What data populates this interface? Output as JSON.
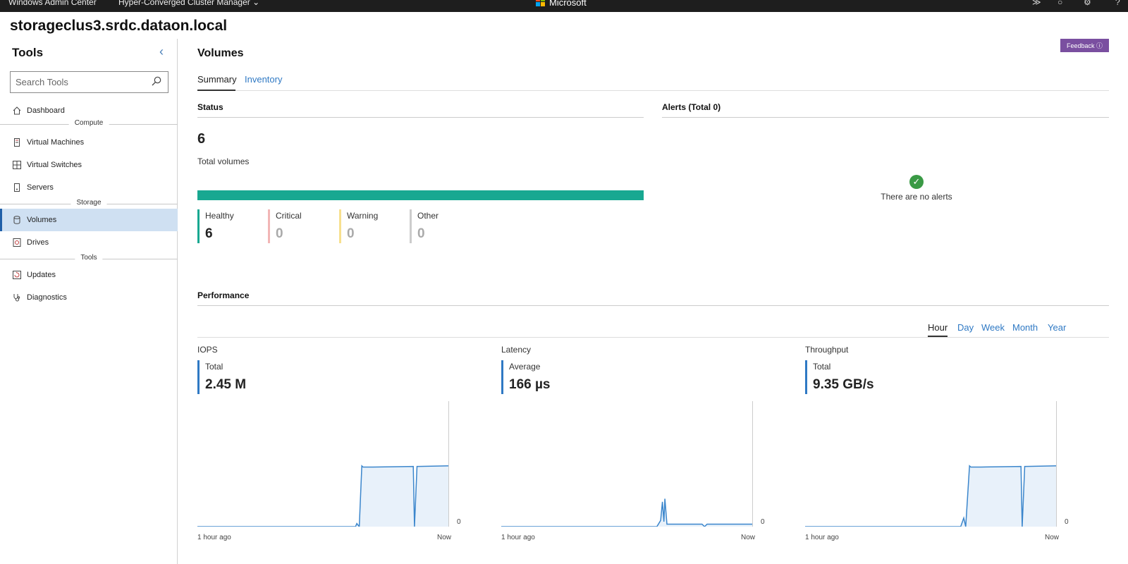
{
  "topbar": {
    "app_title": "Windows Admin Center",
    "manager": "Hyper-Converged Cluster Manager",
    "brand": "Microsoft",
    "icons": [
      "terminal-icon",
      "bell-icon",
      "gear-icon",
      "help-icon"
    ]
  },
  "page": {
    "title": "storageclus3.srdc.dataon.local"
  },
  "sidebar": {
    "title": "Tools",
    "search_placeholder": "Search Tools",
    "items": [
      {
        "label": "Dashboard",
        "icon": "home-icon"
      },
      {
        "group": "Compute"
      },
      {
        "label": "Virtual Machines",
        "icon": "vm-icon"
      },
      {
        "label": "Virtual Switches",
        "icon": "switch-icon"
      },
      {
        "label": "Servers",
        "icon": "server-icon"
      },
      {
        "group": "Storage"
      },
      {
        "label": "Volumes",
        "icon": "volume-icon",
        "active": true
      },
      {
        "label": "Drives",
        "icon": "drive-icon"
      },
      {
        "group": "Tools"
      },
      {
        "label": "Updates",
        "icon": "update-icon"
      },
      {
        "label": "Diagnostics",
        "icon": "stethoscope-icon"
      }
    ]
  },
  "main": {
    "title": "Volumes",
    "feedback_label": "Feedback",
    "tabs": [
      {
        "label": "Summary",
        "selected": true
      },
      {
        "label": "Inventory",
        "selected": false
      }
    ],
    "status": {
      "heading": "Status",
      "total": "6",
      "total_label": "Total volumes",
      "healthy_fraction": 1.0,
      "stats": [
        {
          "label": "Healthy",
          "value": "6",
          "color": "#18a891"
        },
        {
          "label": "Critical",
          "value": "0",
          "color": "#f2b6b6"
        },
        {
          "label": "Warning",
          "value": "0",
          "color": "#f7e08f"
        },
        {
          "label": "Other",
          "value": "0",
          "color": "#cccccc"
        }
      ]
    },
    "alerts": {
      "heading": "Alerts (Total 0)",
      "empty_text": "There are no alerts"
    },
    "performance": {
      "heading": "Performance",
      "ranges": [
        {
          "label": "Hour",
          "selected": true
        },
        {
          "label": "Day"
        },
        {
          "label": "Week"
        },
        {
          "label": "Month"
        },
        {
          "label": "Year"
        }
      ],
      "x_start_label": "1 hour ago",
      "x_end_label": "Now",
      "y_zero_label": "0",
      "metrics": [
        {
          "name": "IOPS",
          "sub": "Total",
          "value": "2.45 M"
        },
        {
          "name": "Latency",
          "sub": "Average",
          "value": "166 µs"
        },
        {
          "name": "Throughput",
          "sub": "Total",
          "value": "9.35 GB/s"
        }
      ]
    }
  },
  "chart_data": [
    {
      "type": "area",
      "title": "IOPS",
      "x": [
        0,
        0.63,
        0.635,
        0.645,
        0.655,
        0.66,
        0.7,
        0.86,
        0.865,
        0.875,
        0.88,
        1.0
      ],
      "values": [
        0,
        0,
        0.05,
        0,
        0.98,
        0.96,
        0.96,
        0.97,
        0.0,
        0.97,
        0.97,
        0.98
      ],
      "xlabels": [
        "1 hour ago",
        "Now"
      ],
      "color": "#3b86cc"
    },
    {
      "type": "area",
      "title": "Latency",
      "x": [
        0,
        0.62,
        0.635,
        0.642,
        0.648,
        0.652,
        0.66,
        0.8,
        0.81,
        0.82,
        1.0
      ],
      "values": [
        0,
        0,
        0.1,
        0.4,
        0.08,
        0.45,
        0.04,
        0.04,
        0.0,
        0.04,
        0.04
      ],
      "xlabels": [
        "1 hour ago",
        "Now"
      ],
      "color": "#3b86cc"
    },
    {
      "type": "area",
      "title": "Throughput",
      "x": [
        0,
        0.62,
        0.632,
        0.64,
        0.655,
        0.66,
        0.7,
        0.86,
        0.865,
        0.875,
        0.88,
        1.0
      ],
      "values": [
        0,
        0,
        0.14,
        0,
        0.98,
        0.96,
        0.96,
        0.97,
        0.0,
        0.97,
        0.97,
        0.98
      ],
      "xlabels": [
        "1 hour ago",
        "Now"
      ],
      "color": "#3b86cc"
    }
  ]
}
